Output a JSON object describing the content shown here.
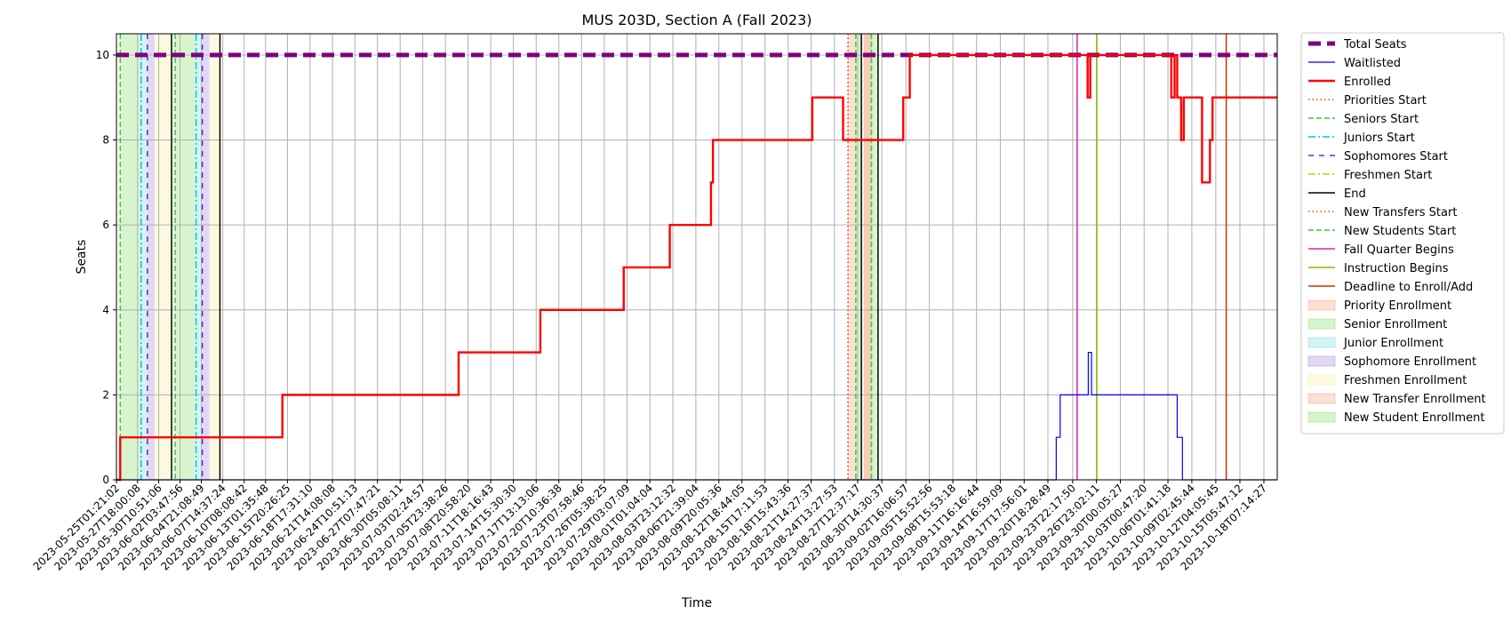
{
  "chart_data": {
    "type": "line",
    "title": "MUS 203D, Section A (Fall 2023)",
    "xlabel": "Time",
    "ylabel": "Seats",
    "xlim": [
      "2023-05-25T01:21:02",
      "2023-10-20T00:00:00"
    ],
    "ylim": [
      0,
      10.5
    ],
    "y_ticks": [
      0,
      2,
      4,
      6,
      8,
      10
    ],
    "grid": true,
    "legend_placement": "outside-right",
    "x_ticks": [
      "2023-05-25T01:21:02",
      "2023-05-27T18:00:08",
      "2023-05-30T10:51:06",
      "2023-06-02T03:47:56",
      "2023-06-04T21:08:49",
      "2023-06-07T14:37:24",
      "2023-06-10T08:08:42",
      "2023-06-13T01:35:48",
      "2023-06-15T20:26:25",
      "2023-06-18T17:31:10",
      "2023-06-21T14:08:08",
      "2023-06-24T10:51:13",
      "2023-06-27T07:47:21",
      "2023-06-30T05:08:11",
      "2023-07-03T02:24:57",
      "2023-07-05T23:38:26",
      "2023-07-08T20:58:20",
      "2023-07-11T18:16:43",
      "2023-07-14T15:30:30",
      "2023-07-17T13:13:06",
      "2023-07-20T10:36:38",
      "2023-07-23T07:58:46",
      "2023-07-26T05:38:25",
      "2023-07-29T03:07:09",
      "2023-08-01T01:04:04",
      "2023-08-03T23:12:32",
      "2023-08-06T21:39:04",
      "2023-08-09T20:05:36",
      "2023-08-12T18:44:05",
      "2023-08-15T17:11:53",
      "2023-08-18T15:43:36",
      "2023-08-21T14:27:37",
      "2023-08-24T13:27:53",
      "2023-08-27T12:37:17",
      "2023-08-30T14:30:37",
      "2023-09-02T16:06:57",
      "2023-09-05T15:52:56",
      "2023-09-08T15:53:18",
      "2023-09-11T16:16:44",
      "2023-09-14T16:59:09",
      "2023-09-17T17:56:01",
      "2023-09-20T18:28:49",
      "2023-09-23T22:17:50",
      "2023-09-26T23:02:11",
      "2023-09-30T00:05:27",
      "2023-10-03T00:47:20",
      "2023-10-06T01:41:18",
      "2023-10-09T02:45:44",
      "2023-10-12T04:05:45",
      "2023-10-15T05:47:12",
      "2023-10-18T07:14:27"
    ],
    "series": [
      {
        "name": "Total Seats",
        "color": "#800080",
        "style": "dashed-thick",
        "points": [
          [
            "2023-05-25T01:21:02",
            10
          ],
          [
            "2023-10-20T00:00:00",
            10
          ]
        ]
      },
      {
        "name": "Waitlisted",
        "color": "#0000ff",
        "style": "solid-thin",
        "points": [
          [
            "2023-05-25T01:21:02",
            0
          ],
          [
            "2023-09-21T20:00:00",
            0
          ],
          [
            "2023-09-21T20:00:00",
            1
          ],
          [
            "2023-09-22T08:00:00",
            1
          ],
          [
            "2023-09-22T08:00:00",
            2
          ],
          [
            "2023-09-25T22:00:00",
            2
          ],
          [
            "2023-09-25T22:00:00",
            3
          ],
          [
            "2023-09-26T08:00:00",
            3
          ],
          [
            "2023-09-26T08:00:00",
            2
          ],
          [
            "2023-10-07T06:00:00",
            2
          ],
          [
            "2023-10-07T06:00:00",
            1
          ],
          [
            "2023-10-07T22:00:00",
            1
          ],
          [
            "2023-10-07T22:00:00",
            0
          ],
          [
            "2023-10-20T00:00:00",
            0
          ]
        ]
      },
      {
        "name": "Enrolled",
        "color": "#ff0000",
        "style": "solid-thick",
        "points": [
          [
            "2023-05-25T01:21:02",
            0
          ],
          [
            "2023-05-25T13:00:00",
            0
          ],
          [
            "2023-05-25T13:00:00",
            1
          ],
          [
            "2023-06-15T05:00:00",
            1
          ],
          [
            "2023-06-15T05:00:00",
            2
          ],
          [
            "2023-07-07T16:00:00",
            2
          ],
          [
            "2023-07-07T16:00:00",
            3
          ],
          [
            "2023-07-18T02:00:00",
            3
          ],
          [
            "2023-07-18T02:00:00",
            4
          ],
          [
            "2023-07-28T17:00:00",
            4
          ],
          [
            "2023-07-28T17:00:00",
            5
          ],
          [
            "2023-08-03T14:00:00",
            5
          ],
          [
            "2023-08-03T14:00:00",
            6
          ],
          [
            "2023-08-08T20:00:00",
            6
          ],
          [
            "2023-08-08T20:00:00",
            7
          ],
          [
            "2023-08-09T02:00:00",
            7
          ],
          [
            "2023-08-09T02:00:00",
            8
          ],
          [
            "2023-08-21T18:00:00",
            8
          ],
          [
            "2023-08-21T18:00:00",
            9
          ],
          [
            "2023-08-25T16:00:00",
            9
          ],
          [
            "2023-08-25T16:00:00",
            8
          ],
          [
            "2023-09-02T08:00:00",
            8
          ],
          [
            "2023-09-02T08:00:00",
            9
          ],
          [
            "2023-09-03T04:00:00",
            9
          ],
          [
            "2023-09-03T04:00:00",
            10
          ],
          [
            "2023-09-25T20:00:00",
            10
          ],
          [
            "2023-09-25T20:00:00",
            9
          ],
          [
            "2023-09-26T04:00:00",
            9
          ],
          [
            "2023-09-26T04:00:00",
            10
          ],
          [
            "2023-10-06T12:00:00",
            10
          ],
          [
            "2023-10-06T12:00:00",
            9
          ],
          [
            "2023-10-06T22:00:00",
            9
          ],
          [
            "2023-10-06T22:00:00",
            10
          ],
          [
            "2023-10-07T06:00:00",
            10
          ],
          [
            "2023-10-07T06:00:00",
            9
          ],
          [
            "2023-10-07T18:00:00",
            9
          ],
          [
            "2023-10-07T18:00:00",
            8
          ],
          [
            "2023-10-08T02:00:00",
            8
          ],
          [
            "2023-10-08T02:00:00",
            9
          ],
          [
            "2023-10-10T10:00:00",
            9
          ],
          [
            "2023-10-10T10:00:00",
            7
          ],
          [
            "2023-10-11T10:00:00",
            7
          ],
          [
            "2023-10-11T10:00:00",
            8
          ],
          [
            "2023-10-11T18:00:00",
            8
          ],
          [
            "2023-10-11T18:00:00",
            9
          ],
          [
            "2023-10-20T00:00:00",
            9
          ]
        ]
      }
    ],
    "vlines": [
      {
        "name": "Priorities Start",
        "color": "#ff4500",
        "style": "dotted",
        "dates": [
          "2023-05-25T13:00:00",
          "2023-08-26T07:00:00"
        ]
      },
      {
        "name": "Seniors Start",
        "color": "#32cd32",
        "style": "dashed",
        "dates": [
          "2023-05-25T13:00:00",
          "2023-06-01T13:00:00"
        ]
      },
      {
        "name": "Juniors Start",
        "color": "#00bfff",
        "style": "dashdot",
        "dates": [
          "2023-05-28T05:00:00",
          "2023-06-04T05:00:00"
        ]
      },
      {
        "name": "Sophomores Start",
        "color": "#5a2bd6",
        "style": "loosedash",
        "dates": [
          "2023-05-29T00:00:00",
          "2023-06-05T00:00:00"
        ]
      },
      {
        "name": "Freshmen Start",
        "color": "#c8c800",
        "style": "dashdot",
        "dates": []
      },
      {
        "name": "End",
        "color": "#000000",
        "style": "solid",
        "dates": [
          "2023-06-01T02:00:00",
          "2023-06-07T06:00:00",
          "2023-08-28T00:00:00",
          "2023-08-30T03:00:00"
        ]
      },
      {
        "name": "New Transfers Start",
        "color": "#ff4500",
        "style": "dotted",
        "dates": [
          "2023-08-26T07:00:00"
        ]
      },
      {
        "name": "New Students Start",
        "color": "#32cd32",
        "style": "dashed",
        "dates": [
          "2023-08-27T07:00:00",
          "2023-08-29T07:00:00"
        ]
      },
      {
        "name": "Fall Quarter Begins",
        "color": "#e020b0",
        "style": "solid",
        "dates": [
          "2023-09-24T12:00:00"
        ]
      },
      {
        "name": "Instruction Begins",
        "color": "#7fbf00",
        "style": "solid",
        "dates": [
          "2023-09-27T00:00:00"
        ]
      },
      {
        "name": "Deadline to Enroll/Add",
        "color": "#cc3300",
        "style": "solid",
        "dates": [
          "2023-10-13T12:00:00"
        ]
      }
    ],
    "bands": [
      {
        "name": "Priority Enrollment",
        "color": "#f4a582",
        "ranges": [
          [
            "2023-08-26T07:00:00",
            "2023-08-27T07:00:00"
          ],
          [
            "2023-08-28T07:00:00",
            "2023-08-29T07:00:00"
          ]
        ]
      },
      {
        "name": "Senior Enrollment",
        "color": "#90e070",
        "ranges": [
          [
            "2023-05-25T13:00:00",
            "2023-05-28T05:00:00"
          ],
          [
            "2023-06-01T13:00:00",
            "2023-06-04T05:00:00"
          ]
        ]
      },
      {
        "name": "Junior Enrollment",
        "color": "#80e0e0",
        "ranges": [
          [
            "2023-05-28T05:00:00",
            "2023-05-29T00:00:00"
          ],
          [
            "2023-06-04T05:00:00",
            "2023-06-05T00:00:00"
          ]
        ]
      },
      {
        "name": "Sophomore Enrollment",
        "color": "#b090e0",
        "ranges": [
          [
            "2023-05-29T00:00:00",
            "2023-05-29T22:00:00"
          ],
          [
            "2023-06-05T00:00:00",
            "2023-06-05T22:00:00"
          ]
        ]
      },
      {
        "name": "Freshmen Enrollment",
        "color": "#f5f0a0",
        "ranges": [
          [
            "2023-05-29T22:00:00",
            "2023-06-01T02:00:00"
          ],
          [
            "2023-06-05T22:00:00",
            "2023-06-07T06:00:00"
          ]
        ]
      },
      {
        "name": "New Transfer Enrollment",
        "color": "#f4a582",
        "ranges": [
          [
            "2023-08-28T07:00:00",
            "2023-08-29T07:00:00"
          ]
        ]
      },
      {
        "name": "New Student Enrollment",
        "color": "#90e070",
        "ranges": [
          [
            "2023-08-27T07:00:00",
            "2023-08-28T00:00:00"
          ],
          [
            "2023-08-29T07:00:00",
            "2023-08-30T03:00:00"
          ]
        ]
      }
    ]
  }
}
